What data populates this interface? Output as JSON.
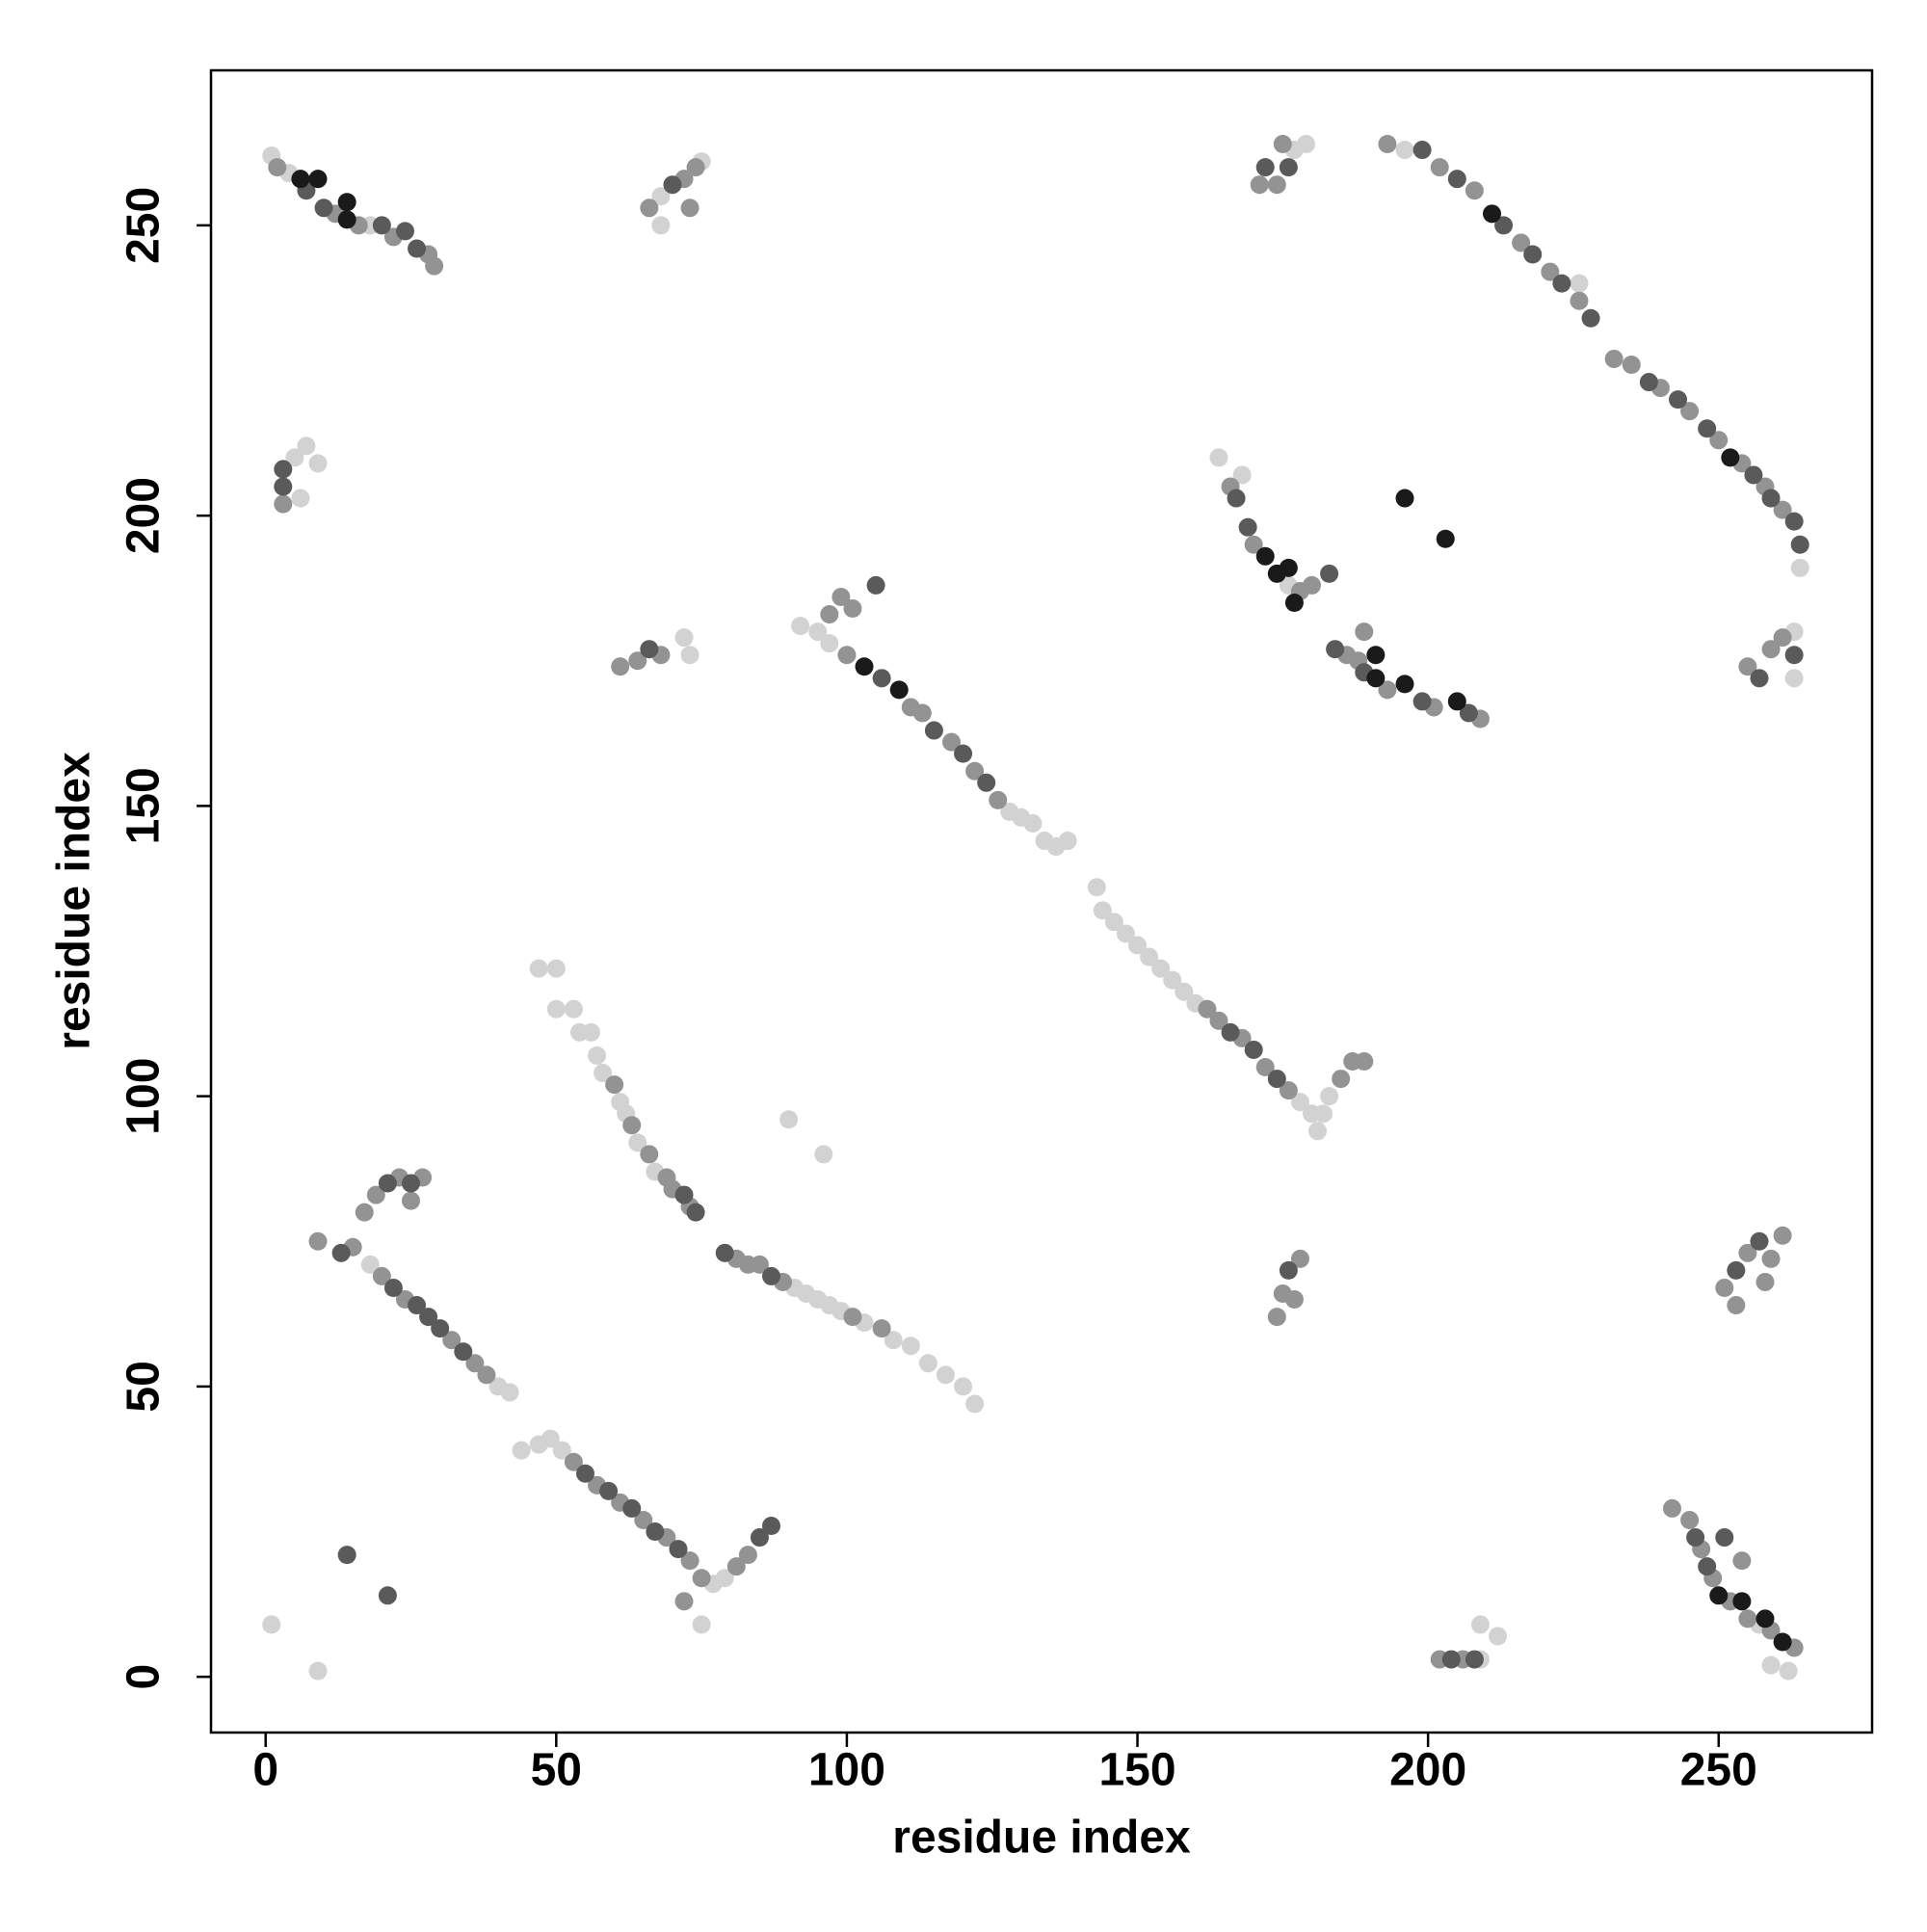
{
  "chart_data": {
    "type": "scatter",
    "xlabel": "residue index",
    "ylabel": "residue index",
    "xlim": [
      -9.4,
      276.4
    ],
    "ylim": [
      -9.6,
      276.7
    ],
    "xticks": [
      0,
      50,
      100,
      150,
      200,
      250
    ],
    "yticks": [
      0,
      50,
      100,
      150,
      200,
      250
    ],
    "grid": false,
    "series": [
      {
        "color": "#d2d2d2",
        "x": [
          1,
          4,
          18,
          68,
          68,
          75,
          177,
          179,
          196,
          226,
          264,
          5,
          7,
          9,
          6,
          164,
          168,
          176,
          72,
          73,
          263,
          263,
          92,
          95,
          97,
          128,
          130,
          132,
          134,
          136,
          138,
          143,
          144,
          146,
          148,
          150,
          152,
          154,
          156,
          158,
          160,
          178,
          180,
          181,
          182,
          183,
          47,
          50,
          50,
          53,
          54,
          56,
          57,
          58,
          61,
          62,
          64,
          67,
          90,
          96,
          91,
          93,
          95,
          97,
          99,
          103,
          108,
          111,
          114,
          117,
          120,
          122,
          18,
          40,
          42,
          44,
          47,
          49,
          51,
          77,
          79,
          75,
          1,
          9,
          209,
          212,
          209,
          262,
          259,
          257
        ],
        "values": [
          262,
          259,
          250,
          255,
          250,
          261,
          263,
          264,
          263,
          240,
          191,
          210,
          212,
          209,
          203,
          210,
          207,
          188,
          179,
          176,
          180,
          172,
          181,
          180,
          178,
          149,
          148,
          147,
          144,
          143,
          144,
          136,
          132,
          130,
          128,
          126,
          124,
          122,
          120,
          118,
          116,
          99,
          97,
          94,
          97,
          100,
          122,
          122,
          115,
          115,
          111,
          111,
          107,
          104,
          99,
          97,
          92,
          87,
          96,
          90,
          67,
          66,
          65,
          64,
          63,
          61,
          58,
          57,
          54,
          52,
          50,
          47,
          71,
          50,
          49,
          39,
          40,
          41,
          39,
          16,
          17,
          9,
          9,
          1,
          9,
          7,
          3,
          1,
          2,
          9
        ]
      },
      {
        "color": "#939393",
        "x": [
          2,
          12,
          16,
          22,
          28,
          29,
          66,
          72,
          74,
          73,
          171,
          175,
          174,
          193,
          202,
          208,
          216,
          221,
          226,
          232,
          235,
          240,
          245,
          250,
          254,
          258,
          261,
          3,
          166,
          170,
          178,
          180,
          186,
          188,
          193,
          201,
          209,
          189,
          61,
          64,
          68,
          255,
          259,
          261,
          97,
          99,
          101,
          100,
          111,
          113,
          118,
          122,
          126,
          162,
          164,
          168,
          172,
          176,
          185,
          187,
          189,
          60,
          63,
          66,
          69,
          70,
          73,
          81,
          83,
          85,
          89,
          101,
          106,
          9,
          15,
          17,
          19,
          23,
          27,
          25,
          20,
          24,
          32,
          36,
          38,
          53,
          57,
          61,
          65,
          69,
          73,
          75,
          81,
          83,
          72,
          174,
          175,
          178,
          177,
          251,
          255,
          259,
          261,
          253,
          258,
          202,
          206,
          242,
          245,
          247,
          249,
          252,
          255,
          259,
          263,
          254
        ],
        "values": [
          260,
          252,
          250,
          248,
          245,
          243,
          253,
          258,
          260,
          253,
          257,
          264,
          257,
          264,
          260,
          256,
          247,
          242,
          237,
          227,
          226,
          222,
          218,
          213,
          209,
          205,
          201,
          202,
          205,
          195,
          187,
          188,
          176,
          175,
          170,
          167,
          165,
          180,
          174,
          175,
          176,
          174,
          177,
          179,
          183,
          186,
          184,
          176,
          167,
          166,
          161,
          156,
          151,
          115,
          113,
          110,
          105,
          101,
          103,
          106,
          106,
          102,
          95,
          90,
          86,
          84,
          81,
          72,
          71,
          71,
          68,
          62,
          60,
          75,
          74,
          80,
          83,
          86,
          86,
          82,
          69,
          65,
          58,
          54,
          52,
          37,
          33,
          30,
          27,
          24,
          20,
          17,
          19,
          21,
          13,
          62,
          66,
          72,
          65,
          67,
          73,
          72,
          76,
          64,
          68,
          3,
          3,
          29,
          27,
          22,
          17,
          13,
          10,
          8,
          5,
          20
        ]
      },
      {
        "color": "#5a5a5a",
        "x": [
          7,
          10,
          20,
          24,
          26,
          70,
          172,
          176,
          199,
          205,
          213,
          218,
          223,
          228,
          238,
          243,
          248,
          256,
          259,
          263,
          264,
          3,
          3,
          167,
          169,
          184,
          189,
          199,
          207,
          66,
          257,
          105,
          106,
          115,
          120,
          124,
          166,
          170,
          174,
          72,
          74,
          79,
          87,
          13,
          21,
          25,
          22,
          26,
          28,
          30,
          34,
          55,
          59,
          63,
          67,
          71,
          85,
          87,
          14,
          21,
          176,
          253,
          257,
          204,
          208,
          246,
          248,
          251,
          183,
          263
        ],
        "values": [
          256,
          253,
          250,
          249,
          246,
          257,
          260,
          260,
          263,
          258,
          250,
          245,
          240,
          234,
          223,
          220,
          215,
          207,
          203,
          199,
          195,
          205,
          208,
          203,
          198,
          177,
          173,
          168,
          166,
          177,
          172,
          188,
          172,
          163,
          159,
          154,
          111,
          108,
          103,
          83,
          80,
          73,
          69,
          73,
          85,
          85,
          67,
          64,
          62,
          60,
          56,
          35,
          32,
          29,
          25,
          22,
          24,
          26,
          21,
          14,
          70,
          70,
          75,
          3,
          3,
          24,
          19,
          24,
          190,
          176
        ]
      },
      {
        "color": "#1a1a1a",
        "x": [
          196,
          203,
          6,
          9,
          14,
          14,
          172,
          176,
          177,
          191,
          196,
          250,
          254,
          258,
          261,
          211,
          252,
          103,
          109,
          205,
          191,
          174
        ],
        "values": [
          203,
          196,
          258,
          258,
          254,
          251,
          193,
          191,
          185,
          176,
          171,
          14,
          13,
          10,
          6,
          252,
          210,
          174,
          170,
          168,
          172,
          190
        ]
      }
    ]
  }
}
